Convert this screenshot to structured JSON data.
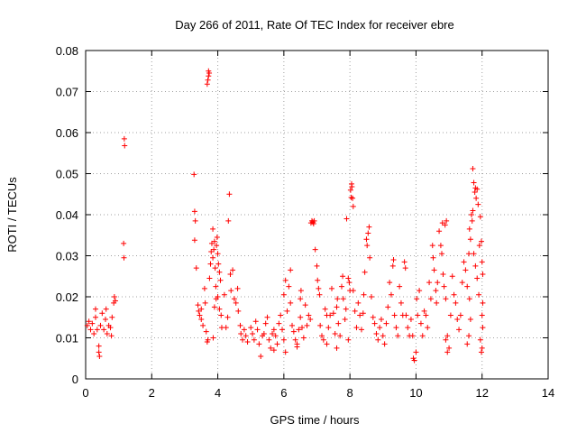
{
  "chart_data": {
    "type": "scatter",
    "title": "Day 266 of 2011, Rate Of TEC Index for receiver ebre",
    "xlabel": "GPS time / hours",
    "ylabel": "ROTI / TECUs",
    "xlim": [
      0,
      14
    ],
    "ylim": [
      0,
      0.08
    ],
    "xticks": [
      0,
      2,
      4,
      6,
      8,
      10,
      12,
      14
    ],
    "xtick_labels": [
      "0",
      "2",
      "4",
      "6",
      "8",
      "10",
      "12",
      "14"
    ],
    "yticks": [
      0,
      0.01,
      0.02,
      0.03,
      0.04,
      0.05,
      0.06,
      0.07,
      0.08
    ],
    "ytick_labels": [
      "0",
      "0.01",
      "0.02",
      "0.03",
      "0.04",
      "0.05",
      "0.06",
      "0.07",
      "0.08"
    ],
    "grid": true,
    "marker": "+",
    "color": "#ff0000",
    "series": [
      {
        "name": "ROTI",
        "points": [
          [
            0.05,
            0.013
          ],
          [
            0.1,
            0.014
          ],
          [
            0.15,
            0.012
          ],
          [
            0.2,
            0.0135
          ],
          [
            0.25,
            0.011
          ],
          [
            0.3,
            0.015
          ],
          [
            0.3,
            0.017
          ],
          [
            0.35,
            0.012
          ],
          [
            0.4,
            0.008
          ],
          [
            0.4,
            0.0065
          ],
          [
            0.42,
            0.0055
          ],
          [
            0.45,
            0.013
          ],
          [
            0.5,
            0.016
          ],
          [
            0.55,
            0.012
          ],
          [
            0.6,
            0.0145
          ],
          [
            0.62,
            0.017
          ],
          [
            0.65,
            0.011
          ],
          [
            0.7,
            0.013
          ],
          [
            0.75,
            0.0125
          ],
          [
            0.8,
            0.015
          ],
          [
            0.85,
            0.0185
          ],
          [
            0.87,
            0.02
          ],
          [
            0.9,
            0.019
          ],
          [
            0.78,
            0.0105
          ],
          [
            1.17,
            0.0585
          ],
          [
            1.18,
            0.0568
          ],
          [
            1.15,
            0.033
          ],
          [
            1.16,
            0.0295
          ],
          [
            3.28,
            0.0498
          ],
          [
            3.3,
            0.0408
          ],
          [
            3.32,
            0.0385
          ],
          [
            3.3,
            0.0338
          ],
          [
            3.35,
            0.027
          ],
          [
            3.4,
            0.018
          ],
          [
            3.42,
            0.0165
          ],
          [
            3.45,
            0.0155
          ],
          [
            3.5,
            0.017
          ],
          [
            3.5,
            0.0145
          ],
          [
            3.55,
            0.013
          ],
          [
            3.6,
            0.022
          ],
          [
            3.62,
            0.0185
          ],
          [
            3.65,
            0.0115
          ],
          [
            3.68,
            0.009
          ],
          [
            3.7,
            0.0095
          ],
          [
            3.68,
            0.0718
          ],
          [
            3.7,
            0.0728
          ],
          [
            3.72,
            0.0738
          ],
          [
            3.72,
            0.075
          ],
          [
            3.74,
            0.0745
          ],
          [
            3.75,
            0.0245
          ],
          [
            3.78,
            0.028
          ],
          [
            3.8,
            0.031
          ],
          [
            3.82,
            0.033
          ],
          [
            3.85,
            0.0365
          ],
          [
            3.85,
            0.0295
          ],
          [
            3.88,
            0.0315
          ],
          [
            3.9,
            0.0335
          ],
          [
            3.92,
            0.027
          ],
          [
            3.94,
            0.0225
          ],
          [
            3.96,
            0.0325
          ],
          [
            3.98,
            0.0345
          ],
          [
            4.0,
            0.0305
          ],
          [
            4.02,
            0.028
          ],
          [
            4.05,
            0.026
          ],
          [
            4.08,
            0.024
          ],
          [
            3.9,
            0.0175
          ],
          [
            3.95,
            0.0195
          ],
          [
            4.0,
            0.02
          ],
          [
            4.05,
            0.017
          ],
          [
            4.1,
            0.0155
          ],
          [
            3.86,
            0.01
          ],
          [
            4.12,
            0.0125
          ],
          [
            4.2,
            0.0205
          ],
          [
            4.25,
            0.0125
          ],
          [
            4.3,
            0.015
          ],
          [
            4.32,
            0.0385
          ],
          [
            4.35,
            0.045
          ],
          [
            4.38,
            0.0255
          ],
          [
            4.4,
            0.0215
          ],
          [
            4.45,
            0.0265
          ],
          [
            4.5,
            0.0195
          ],
          [
            4.55,
            0.0185
          ],
          [
            4.6,
            0.022
          ],
          [
            4.62,
            0.0165
          ],
          [
            4.68,
            0.013
          ],
          [
            4.7,
            0.011
          ],
          [
            4.75,
            0.0095
          ],
          [
            4.8,
            0.012
          ],
          [
            4.85,
            0.0105
          ],
          [
            4.9,
            0.009
          ],
          [
            5.0,
            0.0125
          ],
          [
            5.05,
            0.011
          ],
          [
            5.1,
            0.0095
          ],
          [
            5.15,
            0.014
          ],
          [
            5.2,
            0.012
          ],
          [
            5.25,
            0.0085
          ],
          [
            5.3,
            0.0055
          ],
          [
            5.35,
            0.0105
          ],
          [
            5.4,
            0.011
          ],
          [
            5.45,
            0.0135
          ],
          [
            5.5,
            0.015
          ],
          [
            5.55,
            0.0095
          ],
          [
            5.6,
            0.0075
          ],
          [
            5.65,
            0.011
          ],
          [
            5.7,
            0.012
          ],
          [
            5.75,
            0.0105
          ],
          [
            5.8,
            0.0085
          ],
          [
            5.85,
            0.0135
          ],
          [
            5.9,
            0.0155
          ],
          [
            5.95,
            0.012
          ],
          [
            6.0,
            0.0095
          ],
          [
            6.05,
            0.0065
          ],
          [
            6.1,
            0.0165
          ],
          [
            6.15,
            0.0225
          ],
          [
            6.2,
            0.0185
          ],
          [
            6.25,
            0.013
          ],
          [
            6.3,
            0.0115
          ],
          [
            6.35,
            0.0095
          ],
          [
            6.4,
            0.0085
          ],
          [
            6.45,
            0.012
          ],
          [
            6.5,
            0.015
          ],
          [
            6.55,
            0.0125
          ],
          [
            6.6,
            0.01
          ],
          [
            6.65,
            0.018
          ],
          [
            6.7,
            0.013
          ],
          [
            6.75,
            0.0155
          ],
          [
            6.8,
            0.0145
          ],
          [
            6.0,
            0.0205
          ],
          [
            6.05,
            0.024
          ],
          [
            6.2,
            0.0265
          ],
          [
            6.5,
            0.0195
          ],
          [
            6.52,
            0.0215
          ],
          [
            5.7,
            0.007
          ],
          [
            6.4,
            0.0078
          ],
          [
            6.82,
            0.038
          ],
          [
            6.85,
            0.0385
          ],
          [
            6.88,
            0.0382
          ],
          [
            6.9,
            0.0378
          ],
          [
            6.92,
            0.0385
          ],
          [
            6.95,
            0.0315
          ],
          [
            7.0,
            0.0275
          ],
          [
            7.02,
            0.024
          ],
          [
            7.05,
            0.022
          ],
          [
            7.08,
            0.0205
          ],
          [
            7.1,
            0.013
          ],
          [
            7.15,
            0.0105
          ],
          [
            7.2,
            0.0095
          ],
          [
            7.25,
            0.017
          ],
          [
            7.3,
            0.0155
          ],
          [
            7.35,
            0.0125
          ],
          [
            7.4,
            0.0155
          ],
          [
            7.45,
            0.022
          ],
          [
            7.5,
            0.016
          ],
          [
            7.55,
            0.011
          ],
          [
            7.6,
            0.0175
          ],
          [
            7.62,
            0.0195
          ],
          [
            7.65,
            0.0135
          ],
          [
            7.7,
            0.0105
          ],
          [
            7.75,
            0.0225
          ],
          [
            7.78,
            0.025
          ],
          [
            7.8,
            0.0195
          ],
          [
            7.85,
            0.0145
          ],
          [
            7.88,
            0.017
          ],
          [
            7.9,
            0.039
          ],
          [
            7.95,
            0.0245
          ],
          [
            7.98,
            0.0235
          ],
          [
            8.0,
            0.0215
          ],
          [
            7.3,
            0.0085
          ],
          [
            7.6,
            0.0075
          ],
          [
            7.95,
            0.0095
          ],
          [
            8.02,
            0.046
          ],
          [
            8.05,
            0.0475
          ],
          [
            8.06,
            0.0468
          ],
          [
            8.08,
            0.044
          ],
          [
            8.1,
            0.042
          ],
          [
            8.04,
            0.0442
          ],
          [
            8.1,
            0.0215
          ],
          [
            8.15,
            0.0165
          ],
          [
            8.2,
            0.0125
          ],
          [
            8.25,
            0.0185
          ],
          [
            8.3,
            0.0155
          ],
          [
            8.35,
            0.012
          ],
          [
            8.4,
            0.016
          ],
          [
            8.42,
            0.0205
          ],
          [
            8.45,
            0.026
          ],
          [
            8.5,
            0.034
          ],
          [
            8.52,
            0.0325
          ],
          [
            8.55,
            0.0355
          ],
          [
            8.58,
            0.037
          ],
          [
            8.6,
            0.0295
          ],
          [
            8.65,
            0.02
          ],
          [
            8.7,
            0.015
          ],
          [
            8.75,
            0.0135
          ],
          [
            8.8,
            0.011
          ],
          [
            8.85,
            0.0095
          ],
          [
            8.9,
            0.0125
          ],
          [
            8.95,
            0.0145
          ],
          [
            9.0,
            0.0105
          ],
          [
            9.05,
            0.0085
          ],
          [
            9.1,
            0.0135
          ],
          [
            9.15,
            0.0175
          ],
          [
            9.2,
            0.0235
          ],
          [
            9.25,
            0.0205
          ],
          [
            9.3,
            0.0275
          ],
          [
            9.32,
            0.029
          ],
          [
            9.35,
            0.0155
          ],
          [
            9.4,
            0.0125
          ],
          [
            9.45,
            0.0105
          ],
          [
            9.5,
            0.0225
          ],
          [
            9.55,
            0.0185
          ],
          [
            9.6,
            0.0155
          ],
          [
            9.65,
            0.0285
          ],
          [
            9.68,
            0.027
          ],
          [
            9.7,
            0.0155
          ],
          [
            9.75,
            0.0125
          ],
          [
            9.8,
            0.0105
          ],
          [
            9.85,
            0.0145
          ],
          [
            9.9,
            0.0105
          ],
          [
            9.92,
            0.005
          ],
          [
            9.95,
            0.0045
          ],
          [
            10.0,
            0.0065
          ],
          [
            10.02,
            0.0195
          ],
          [
            10.05,
            0.0155
          ],
          [
            10.1,
            0.0215
          ],
          [
            10.15,
            0.0135
          ],
          [
            10.2,
            0.0105
          ],
          [
            10.25,
            0.0165
          ],
          [
            10.3,
            0.0155
          ],
          [
            10.35,
            0.0125
          ],
          [
            10.4,
            0.0235
          ],
          [
            10.45,
            0.0195
          ],
          [
            10.5,
            0.0325
          ],
          [
            10.52,
            0.0295
          ],
          [
            10.55,
            0.0265
          ],
          [
            10.6,
            0.0215
          ],
          [
            10.62,
            0.0185
          ],
          [
            10.65,
            0.0235
          ],
          [
            10.7,
            0.036
          ],
          [
            10.75,
            0.0325
          ],
          [
            10.78,
            0.0305
          ],
          [
            10.8,
            0.038
          ],
          [
            10.82,
            0.0255
          ],
          [
            10.85,
            0.0225
          ],
          [
            10.88,
            0.0375
          ],
          [
            10.9,
            0.0195
          ],
          [
            10.92,
            0.0385
          ],
          [
            10.95,
            0.0105
          ],
          [
            11.0,
            0.0075
          ],
          [
            10.9,
            0.0095
          ],
          [
            10.95,
            0.0065
          ],
          [
            11.05,
            0.0155
          ],
          [
            11.1,
            0.025
          ],
          [
            11.15,
            0.0205
          ],
          [
            11.2,
            0.0185
          ],
          [
            11.25,
            0.0145
          ],
          [
            11.3,
            0.012
          ],
          [
            11.35,
            0.0155
          ],
          [
            11.4,
            0.0235
          ],
          [
            11.45,
            0.0285
          ],
          [
            11.5,
            0.0265
          ],
          [
            11.55,
            0.0225
          ],
          [
            11.6,
            0.0305
          ],
          [
            11.62,
            0.0195
          ],
          [
            11.65,
            0.0145
          ],
          [
            11.55,
            0.0085
          ],
          [
            11.6,
            0.0105
          ],
          [
            11.62,
            0.0365
          ],
          [
            11.65,
            0.034
          ],
          [
            11.68,
            0.04
          ],
          [
            11.7,
            0.0385
          ],
          [
            11.72,
            0.041
          ],
          [
            11.72,
            0.0512
          ],
          [
            11.75,
            0.0478
          ],
          [
            11.78,
            0.0455
          ],
          [
            11.8,
            0.0465
          ],
          [
            11.82,
            0.044
          ],
          [
            11.85,
            0.0462
          ],
          [
            11.88,
            0.0425
          ],
          [
            11.75,
            0.0305
          ],
          [
            11.8,
            0.0275
          ],
          [
            11.85,
            0.0245
          ],
          [
            11.9,
            0.0205
          ],
          [
            11.92,
            0.0325
          ],
          [
            11.95,
            0.0395
          ],
          [
            11.98,
            0.0335
          ],
          [
            12.0,
            0.0285
          ],
          [
            12.0,
            0.0155
          ],
          [
            12.02,
            0.0185
          ],
          [
            12.02,
            0.0125
          ],
          [
            11.95,
            0.0095
          ],
          [
            12.0,
            0.0075
          ],
          [
            11.98,
            0.0065
          ],
          [
            12.02,
            0.0255
          ]
        ]
      }
    ]
  }
}
